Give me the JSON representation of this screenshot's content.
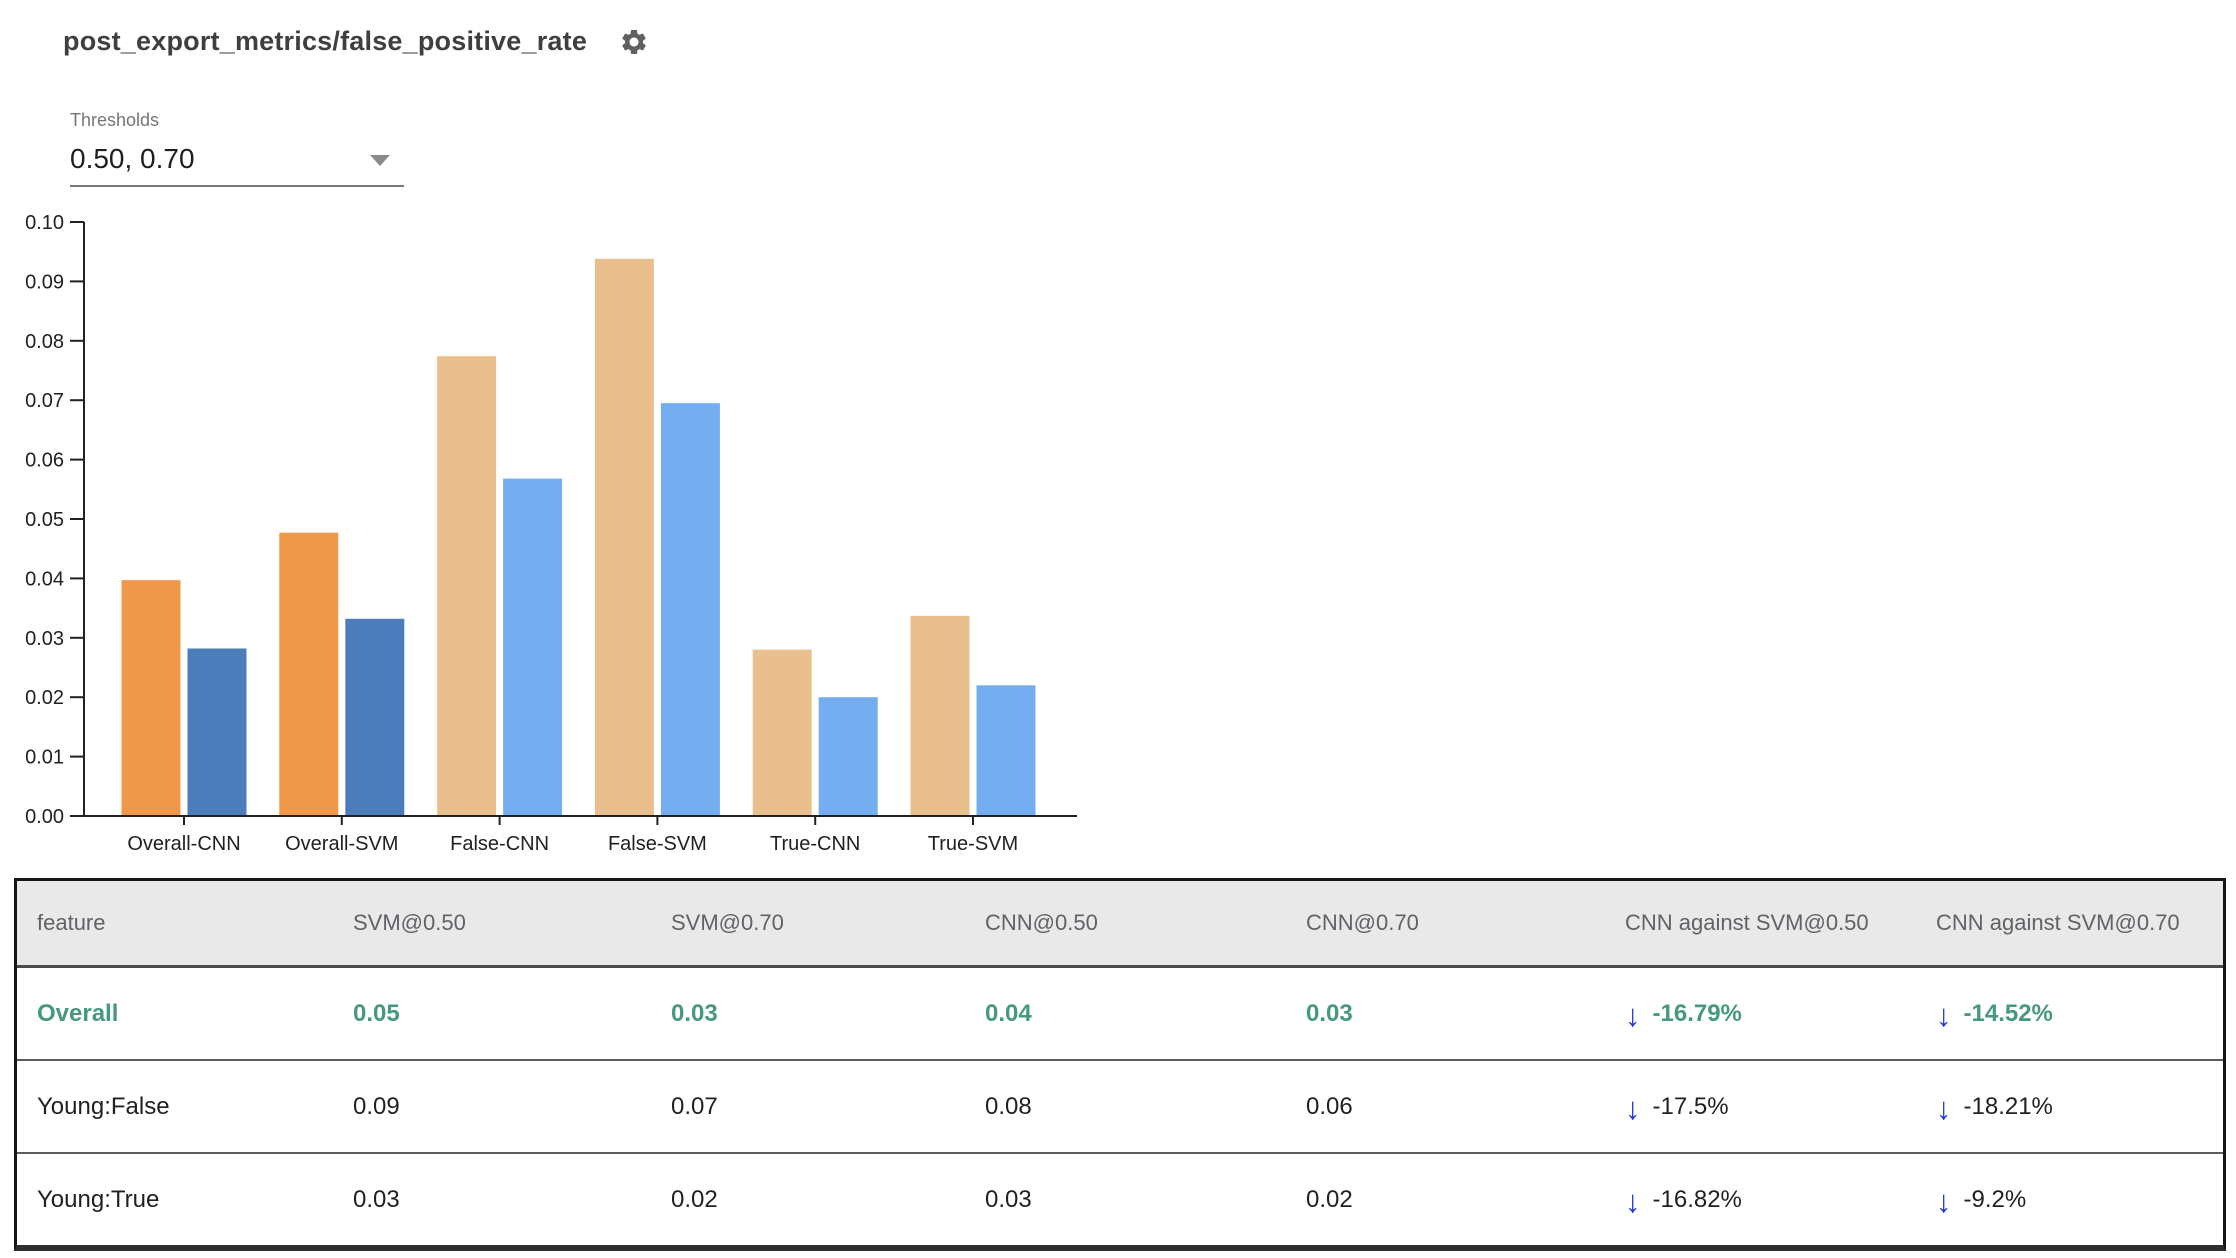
{
  "header": {
    "title": "post_export_metrics/false_positive_rate",
    "settings_icon": "gear-icon"
  },
  "thresholds": {
    "label": "Thresholds",
    "value": "0.50, 0.70"
  },
  "chart_data": {
    "type": "bar",
    "title": "post_export_metrics/false_positive_rate",
    "categories": [
      "Overall-CNN",
      "Overall-SVM",
      "False-CNN",
      "False-SVM",
      "True-CNN",
      "True-SVM"
    ],
    "series": [
      {
        "name": "threshold 0.50",
        "values": [
          0.0397,
          0.0477,
          0.0774,
          0.0938,
          0.028,
          0.0337
        ]
      },
      {
        "name": "threshold 0.70",
        "values": [
          0.0282,
          0.0332,
          0.0568,
          0.0695,
          0.02,
          0.022
        ]
      }
    ],
    "ylim": [
      0,
      0.1
    ],
    "ytick_step": 0.01,
    "yticks": [
      "0.00",
      "0.01",
      "0.02",
      "0.03",
      "0.04",
      "0.05",
      "0.06",
      "0.07",
      "0.08",
      "0.09",
      "0.10"
    ],
    "grid": false,
    "legend": "none",
    "highlight_category_count": 2,
    "colors": {
      "highlight_t050": "#f0984a",
      "highlight_t070": "#4d7cba",
      "muted_t050": "#e9c08d",
      "muted_t070": "#74aef1",
      "axis": "#212121"
    }
  },
  "table": {
    "columns": [
      "feature",
      "SVM@0.50",
      "SVM@0.70",
      "CNN@0.50",
      "CNN@0.70",
      "CNN against SVM@0.50",
      "CNN against SVM@0.70"
    ],
    "arrow_glyph": "↓",
    "arrow_meaning": "decrease",
    "rows": [
      {
        "feature": "Overall",
        "values": [
          "0.05",
          "0.03",
          "0.04",
          "0.03"
        ],
        "deltas": [
          "-16.79%",
          "-14.52%"
        ],
        "highlight": true
      },
      {
        "feature": "Young:False",
        "values": [
          "0.09",
          "0.07",
          "0.08",
          "0.06"
        ],
        "deltas": [
          "-17.5%",
          "-18.21%"
        ],
        "highlight": false
      },
      {
        "feature": "Young:True",
        "values": [
          "0.03",
          "0.02",
          "0.03",
          "0.02"
        ],
        "deltas": [
          "-16.82%",
          "-9.2%"
        ],
        "highlight": false
      }
    ],
    "colors": {
      "header_bg": "#e9e9e9",
      "header_text": "#5f6368",
      "highlight_text": "#459a7c",
      "arrow_blue": "#2038db",
      "row_text": "#212121"
    }
  }
}
